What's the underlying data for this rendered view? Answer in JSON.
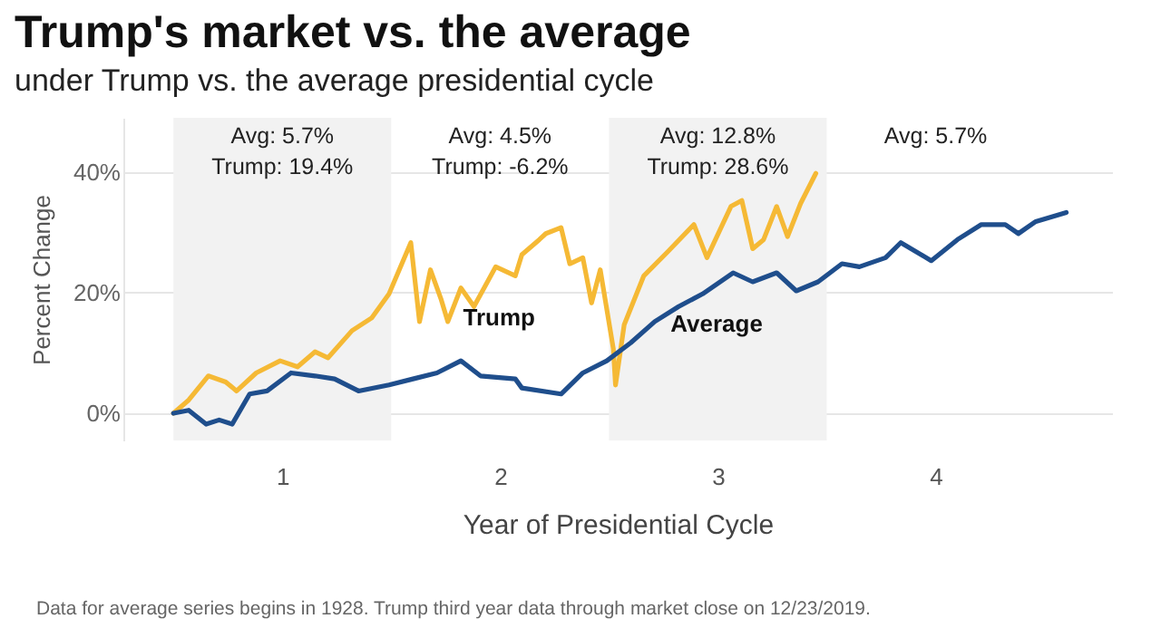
{
  "chart_data": {
    "type": "line",
    "title": "Trump's market vs. the average",
    "subtitle": "under Trump vs. the average presidential cycle",
    "xlabel": "Year of Presidential Cycle",
    "ylabel": "Percent Change",
    "xlim": [
      0.27,
      4.81
    ],
    "xticks": [
      1,
      2,
      3,
      4
    ],
    "ylim": [
      -4.5,
      49
    ],
    "yticks": [
      {
        "value": 0,
        "label": "0%"
      },
      {
        "value": 20,
        "label": "20%"
      },
      {
        "value": 40,
        "label": "40%"
      }
    ],
    "grid": "y",
    "bands": [
      {
        "axis": "x",
        "from": 0.5,
        "to": 1.5,
        "label": null,
        "color": "#f2f2f2"
      },
      {
        "axis": "x",
        "from": 2.5,
        "to": 3.5,
        "label": null,
        "color": "#f2f2f2"
      }
    ],
    "series": [
      {
        "name": "Trump",
        "color": "#f5b935",
        "x": [
          0.5,
          0.57,
          0.66,
          0.74,
          0.79,
          0.88,
          0.99,
          1.07,
          1.15,
          1.21,
          1.32,
          1.41,
          1.49,
          1.59,
          1.63,
          1.68,
          1.73,
          1.76,
          1.82,
          1.88,
          1.98,
          2.07,
          2.1,
          2.18,
          2.21,
          2.28,
          2.32,
          2.38,
          2.42,
          2.46,
          2.52,
          2.53,
          2.57,
          2.66,
          2.77,
          2.89,
          2.95,
          3.06,
          3.11,
          3.16,
          3.21,
          3.27,
          3.32,
          3.38,
          3.45
        ],
        "values": [
          0,
          2.2,
          6.2,
          5.2,
          3.7,
          6.7,
          8.7,
          7.7,
          10.2,
          9.2,
          13.7,
          15.8,
          19.8,
          28.3,
          15.2,
          23.8,
          18.8,
          15.2,
          20.8,
          17.7,
          24.3,
          22.8,
          26.3,
          28.8,
          29.8,
          30.8,
          24.8,
          25.8,
          18.3,
          23.8,
          10.7,
          4.7,
          14.7,
          22.8,
          26.8,
          31.3,
          25.8,
          34.3,
          35.3,
          27.3,
          28.8,
          34.3,
          29.3,
          34.8,
          39.8
        ]
      },
      {
        "name": "Average",
        "color": "#1f4e8c",
        "x": [
          0.5,
          0.57,
          0.65,
          0.71,
          0.77,
          0.85,
          0.93,
          1.04,
          1.15,
          1.24,
          1.35,
          1.49,
          1.6,
          1.71,
          1.82,
          1.91,
          2.07,
          2.1,
          2.28,
          2.38,
          2.49,
          2.6,
          2.71,
          2.82,
          2.93,
          3.07,
          3.16,
          3.27,
          3.36,
          3.46,
          3.57,
          3.65,
          3.77,
          3.84,
          3.98,
          4.1,
          4.21,
          4.32,
          4.38,
          4.46,
          4.6
        ],
        "values": [
          0,
          0.5,
          -1.8,
          -1.1,
          -1.8,
          3.2,
          3.7,
          6.7,
          6.2,
          5.7,
          3.7,
          4.7,
          5.7,
          6.7,
          8.7,
          6.2,
          5.7,
          4.2,
          3.2,
          6.7,
          8.7,
          11.7,
          15.2,
          17.7,
          19.8,
          23.3,
          21.8,
          23.3,
          20.3,
          21.8,
          24.8,
          24.3,
          25.8,
          28.3,
          25.3,
          28.8,
          31.3,
          31.3,
          29.8,
          31.8,
          33.3
        ]
      }
    ],
    "annotations": [
      "Avg: 5.7%",
      "Trump: 19.4%",
      "Avg: 4.5%",
      "Trump: -6.2%",
      "Avg: 12.8%",
      "Trump: 28.6%",
      "Avg: 5.7%",
      "Data for average series begins in 1928. Trump third year data through market close on 12/23/2019."
    ]
  }
}
